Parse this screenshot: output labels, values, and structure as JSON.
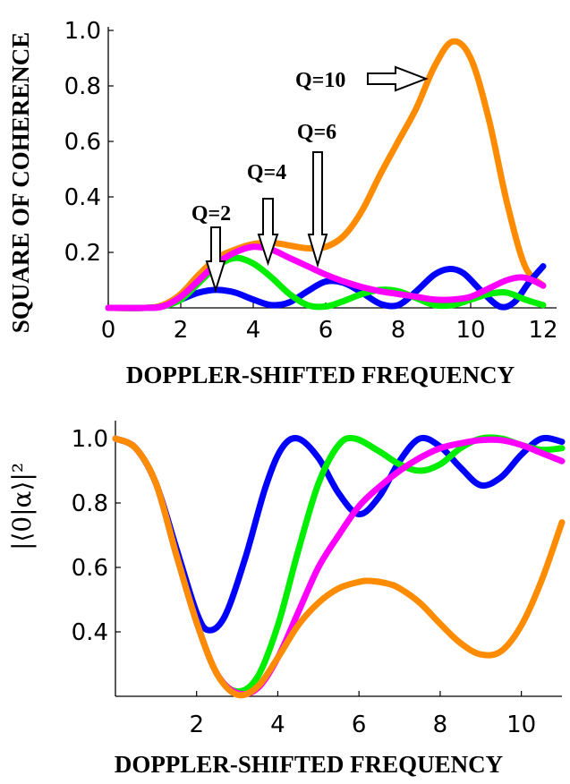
{
  "chart_data": [
    {
      "type": "line",
      "xlabel": "DOPPLER-SHIFTED FREQUENCY",
      "ylabel": "SQUARE OF COHERENCE",
      "xlim": [
        0,
        12
      ],
      "ylim": [
        0,
        1.0
      ],
      "x_ticks": [
        0,
        2,
        4,
        6,
        8,
        10,
        12
      ],
      "y_ticks": [
        0.2,
        0.4,
        0.6,
        0.8,
        1.0
      ],
      "colors": {
        "Q=2": "#0000ff",
        "Q=4": "#00ee00",
        "Q=6": "#ff00ff",
        "Q=10": "#ff8c00"
      },
      "annotations": [
        "Q=2",
        "Q=4",
        "Q=6",
        "Q=10"
      ],
      "series": [
        {
          "name": "Q=2",
          "color": "#0000ff",
          "points": [
            [
              0,
              0
            ],
            [
              1,
              0
            ],
            [
              1.5,
              0.005
            ],
            [
              2,
              0.03
            ],
            [
              2.5,
              0.055
            ],
            [
              3,
              0.065
            ],
            [
              3.5,
              0.055
            ],
            [
              4,
              0.03
            ],
            [
              4.5,
              0.01
            ],
            [
              5,
              0.02
            ],
            [
              5.5,
              0.06
            ],
            [
              6,
              0.095
            ],
            [
              6.5,
              0.09
            ],
            [
              7,
              0.055
            ],
            [
              7.5,
              0.015
            ],
            [
              8,
              0.01
            ],
            [
              8.5,
              0.06
            ],
            [
              9,
              0.12
            ],
            [
              9.4,
              0.14
            ],
            [
              9.8,
              0.125
            ],
            [
              10.3,
              0.06
            ],
            [
              10.8,
              0.005
            ],
            [
              11.2,
              0.02
            ],
            [
              11.6,
              0.09
            ],
            [
              12,
              0.15
            ]
          ]
        },
        {
          "name": "Q=4",
          "color": "#00ee00",
          "points": [
            [
              0,
              0
            ],
            [
              1,
              0
            ],
            [
              1.5,
              0.005
            ],
            [
              2,
              0.03
            ],
            [
              2.5,
              0.09
            ],
            [
              3,
              0.15
            ],
            [
              3.5,
              0.18
            ],
            [
              4,
              0.16
            ],
            [
              4.5,
              0.11
            ],
            [
              5,
              0.05
            ],
            [
              5.5,
              0.01
            ],
            [
              6,
              0.005
            ],
            [
              6.5,
              0.025
            ],
            [
              7,
              0.05
            ],
            [
              7.5,
              0.065
            ],
            [
              8,
              0.06
            ],
            [
              8.5,
              0.035
            ],
            [
              9,
              0.01
            ],
            [
              9.5,
              0.01
            ],
            [
              10,
              0.03
            ],
            [
              10.5,
              0.05
            ],
            [
              11,
              0.055
            ],
            [
              11.5,
              0.03
            ],
            [
              12,
              0.01
            ]
          ]
        },
        {
          "name": "Q=6",
          "color": "#ff00ff",
          "points": [
            [
              0,
              0
            ],
            [
              1,
              0
            ],
            [
              1.5,
              0.005
            ],
            [
              2,
              0.04
            ],
            [
              2.5,
              0.1
            ],
            [
              3,
              0.16
            ],
            [
              3.5,
              0.2
            ],
            [
              4,
              0.22
            ],
            [
              4.5,
              0.21
            ],
            [
              5,
              0.18
            ],
            [
              5.5,
              0.15
            ],
            [
              6,
              0.12
            ],
            [
              6.5,
              0.095
            ],
            [
              7,
              0.075
            ],
            [
              7.5,
              0.06
            ],
            [
              8,
              0.05
            ],
            [
              8.5,
              0.04
            ],
            [
              9,
              0.03
            ],
            [
              9.5,
              0.03
            ],
            [
              10,
              0.04
            ],
            [
              10.5,
              0.07
            ],
            [
              11,
              0.1
            ],
            [
              11.4,
              0.11
            ],
            [
              11.7,
              0.1
            ],
            [
              12,
              0.08
            ]
          ]
        },
        {
          "name": "Q=10",
          "color": "#ff8c00",
          "points": [
            [
              0,
              0
            ],
            [
              1,
              0
            ],
            [
              1.5,
              0.01
            ],
            [
              2,
              0.05
            ],
            [
              2.5,
              0.12
            ],
            [
              3,
              0.18
            ],
            [
              3.5,
              0.21
            ],
            [
              4,
              0.23
            ],
            [
              4.5,
              0.235
            ],
            [
              5,
              0.225
            ],
            [
              5.5,
              0.215
            ],
            [
              6,
              0.22
            ],
            [
              6.5,
              0.26
            ],
            [
              7,
              0.35
            ],
            [
              7.5,
              0.48
            ],
            [
              8,
              0.6
            ],
            [
              8.5,
              0.72
            ],
            [
              9,
              0.87
            ],
            [
              9.5,
              0.96
            ],
            [
              10,
              0.9
            ],
            [
              10.5,
              0.68
            ],
            [
              11,
              0.38
            ],
            [
              11.5,
              0.15
            ],
            [
              12,
              0.08
            ]
          ]
        }
      ]
    },
    {
      "type": "line",
      "xlabel": "DOPPLER-SHIFTED FREQUENCY",
      "ylabel": "|⟨0|α⟩|²",
      "xlim": [
        0,
        11
      ],
      "ylim": [
        0.2,
        1.0
      ],
      "x_ticks": [
        2,
        4,
        6,
        8,
        10
      ],
      "y_ticks": [
        0.4,
        0.6,
        0.8,
        1.0
      ],
      "series": [
        {
          "color": "#0000ff",
          "points": [
            [
              0,
              1.0
            ],
            [
              0.5,
              0.97
            ],
            [
              1,
              0.86
            ],
            [
              1.5,
              0.66
            ],
            [
              2,
              0.46
            ],
            [
              2.3,
              0.405
            ],
            [
              2.7,
              0.45
            ],
            [
              3.2,
              0.63
            ],
            [
              3.7,
              0.85
            ],
            [
              4.1,
              0.97
            ],
            [
              4.5,
              1.0
            ],
            [
              5,
              0.94
            ],
            [
              5.5,
              0.83
            ],
            [
              6,
              0.765
            ],
            [
              6.5,
              0.82
            ],
            [
              7,
              0.93
            ],
            [
              7.5,
              1.0
            ],
            [
              8,
              0.975
            ],
            [
              8.5,
              0.91
            ],
            [
              9,
              0.855
            ],
            [
              9.5,
              0.88
            ],
            [
              10,
              0.95
            ],
            [
              10.5,
              1.0
            ],
            [
              11,
              0.99
            ]
          ]
        },
        {
          "color": "#00ee00",
          "points": [
            [
              0,
              1.0
            ],
            [
              0.5,
              0.97
            ],
            [
              1,
              0.86
            ],
            [
              1.5,
              0.64
            ],
            [
              2,
              0.43
            ],
            [
              2.5,
              0.27
            ],
            [
              3,
              0.215
            ],
            [
              3.5,
              0.26
            ],
            [
              4,
              0.42
            ],
            [
              4.5,
              0.65
            ],
            [
              5,
              0.86
            ],
            [
              5.5,
              0.98
            ],
            [
              5.9,
              1.0
            ],
            [
              6.5,
              0.96
            ],
            [
              7,
              0.92
            ],
            [
              7.5,
              0.9
            ],
            [
              8,
              0.92
            ],
            [
              8.5,
              0.97
            ],
            [
              9,
              1.0
            ],
            [
              9.5,
              1.0
            ],
            [
              10,
              0.98
            ],
            [
              10.5,
              0.965
            ],
            [
              11,
              0.97
            ]
          ]
        },
        {
          "color": "#ff00ff",
          "points": [
            [
              0,
              1.0
            ],
            [
              0.5,
              0.97
            ],
            [
              1,
              0.86
            ],
            [
              1.5,
              0.64
            ],
            [
              2,
              0.43
            ],
            [
              2.5,
              0.27
            ],
            [
              3,
              0.21
            ],
            [
              3.5,
              0.225
            ],
            [
              4,
              0.32
            ],
            [
              4.5,
              0.46
            ],
            [
              5,
              0.6
            ],
            [
              5.5,
              0.7
            ],
            [
              6,
              0.79
            ],
            [
              6.5,
              0.85
            ],
            [
              7,
              0.9
            ],
            [
              7.5,
              0.94
            ],
            [
              8,
              0.97
            ],
            [
              8.5,
              0.985
            ],
            [
              9,
              0.995
            ],
            [
              9.5,
              0.995
            ],
            [
              10,
              0.98
            ],
            [
              10.5,
              0.955
            ],
            [
              11,
              0.93
            ]
          ]
        },
        {
          "color": "#ff8c00",
          "points": [
            [
              0,
              1.0
            ],
            [
              0.5,
              0.97
            ],
            [
              1,
              0.86
            ],
            [
              1.5,
              0.64
            ],
            [
              2,
              0.43
            ],
            [
              2.5,
              0.27
            ],
            [
              3,
              0.205
            ],
            [
              3.5,
              0.23
            ],
            [
              4,
              0.32
            ],
            [
              4.5,
              0.42
            ],
            [
              5,
              0.49
            ],
            [
              5.5,
              0.535
            ],
            [
              6,
              0.555
            ],
            [
              6.3,
              0.558
            ],
            [
              6.7,
              0.55
            ],
            [
              7,
              0.535
            ],
            [
              7.5,
              0.49
            ],
            [
              8,
              0.425
            ],
            [
              8.5,
              0.365
            ],
            [
              9,
              0.33
            ],
            [
              9.5,
              0.34
            ],
            [
              10,
              0.42
            ],
            [
              10.5,
              0.56
            ],
            [
              11,
              0.74
            ]
          ]
        }
      ]
    }
  ]
}
